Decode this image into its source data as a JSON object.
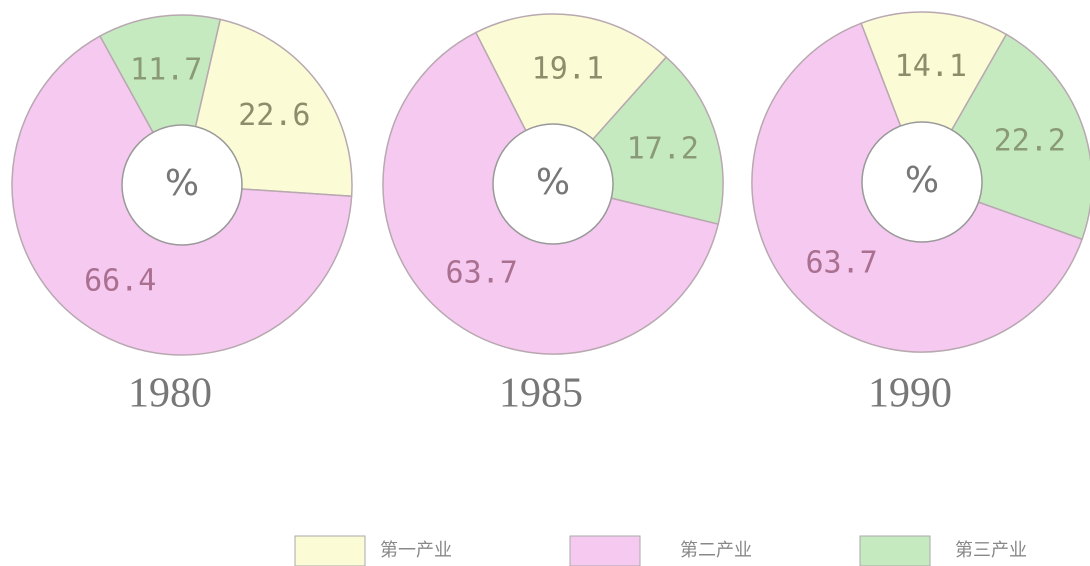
{
  "chart_data": [
    {
      "type": "pie",
      "title": "1980",
      "center_label": "%",
      "categories": [
        "第一产业",
        "第二产业",
        "第三产业"
      ],
      "values": [
        22.6,
        66.4,
        11.7
      ],
      "colors": [
        "#fbfbd6",
        "#f6c9f1",
        "#c6eac0"
      ]
    },
    {
      "type": "pie",
      "title": "1985",
      "center_label": "%",
      "categories": [
        "第一产业",
        "第二产业",
        "第三产业"
      ],
      "values": [
        19.1,
        63.7,
        17.2
      ],
      "colors": [
        "#fbfbd6",
        "#f6c9f1",
        "#c6eac0"
      ]
    },
    {
      "type": "pie",
      "title": "1990",
      "center_label": "%",
      "categories": [
        "第一产业",
        "第二产业",
        "第三产业"
      ],
      "values": [
        14.1,
        63.7,
        22.2
      ],
      "colors": [
        "#fbfbd6",
        "#f6c9f1",
        "#c6eac0"
      ]
    }
  ]
}
